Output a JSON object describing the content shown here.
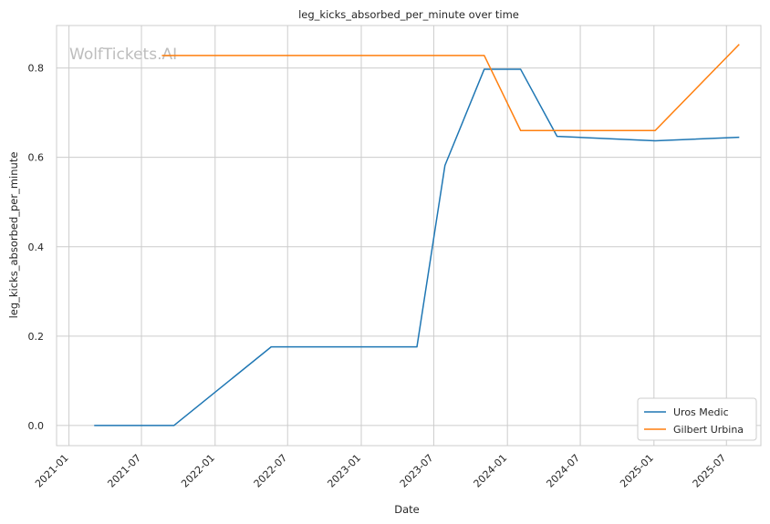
{
  "chart_data": {
    "type": "line",
    "title": "leg_kicks_absorbed_per_minute over time",
    "xlabel": "Date",
    "ylabel": "leg_kicks_absorbed_per_minute",
    "watermark": "WolfTickets.AI",
    "x_axis": {
      "kind": "date",
      "range": [
        "2020-12-01",
        "2025-09-25"
      ],
      "ticks": [
        "2021-01-01",
        "2021-07-01",
        "2022-01-01",
        "2022-07-01",
        "2023-01-01",
        "2023-07-01",
        "2024-01-01",
        "2024-07-01",
        "2025-01-01",
        "2025-07-01"
      ],
      "tick_labels": [
        "2021-01",
        "2021-07",
        "2022-01",
        "2022-07",
        "2023-01",
        "2023-07",
        "2024-01",
        "2024-07",
        "2025-01",
        "2025-07"
      ]
    },
    "y_axis": {
      "range": [
        -0.045,
        0.895
      ],
      "ticks": [
        0.0,
        0.2,
        0.4,
        0.6,
        0.8
      ],
      "tick_labels": [
        "0.0",
        "0.2",
        "0.4",
        "0.6",
        "0.8"
      ]
    },
    "grid": true,
    "legend_position": "bottom-right",
    "series": [
      {
        "name": "Uros Medic",
        "color": "#1f77b4",
        "points": [
          {
            "x": "2021-03-05",
            "y": 0.0
          },
          {
            "x": "2021-09-20",
            "y": 0.0
          },
          {
            "x": "2022-05-21",
            "y": 0.176
          },
          {
            "x": "2023-05-20",
            "y": 0.176
          },
          {
            "x": "2023-07-29",
            "y": 0.582
          },
          {
            "x": "2023-11-04",
            "y": 0.797
          },
          {
            "x": "2024-02-03",
            "y": 0.797
          },
          {
            "x": "2024-05-04",
            "y": 0.647
          },
          {
            "x": "2025-01-04",
            "y": 0.637
          },
          {
            "x": "2025-08-02",
            "y": 0.645
          }
        ]
      },
      {
        "name": "Gilbert Urbina",
        "color": "#ff7f0e",
        "points": [
          {
            "x": "2021-08-21",
            "y": 0.828
          },
          {
            "x": "2023-11-04",
            "y": 0.828
          },
          {
            "x": "2024-02-03",
            "y": 0.66
          },
          {
            "x": "2025-01-04",
            "y": 0.66
          },
          {
            "x": "2025-08-02",
            "y": 0.853
          }
        ]
      }
    ]
  }
}
